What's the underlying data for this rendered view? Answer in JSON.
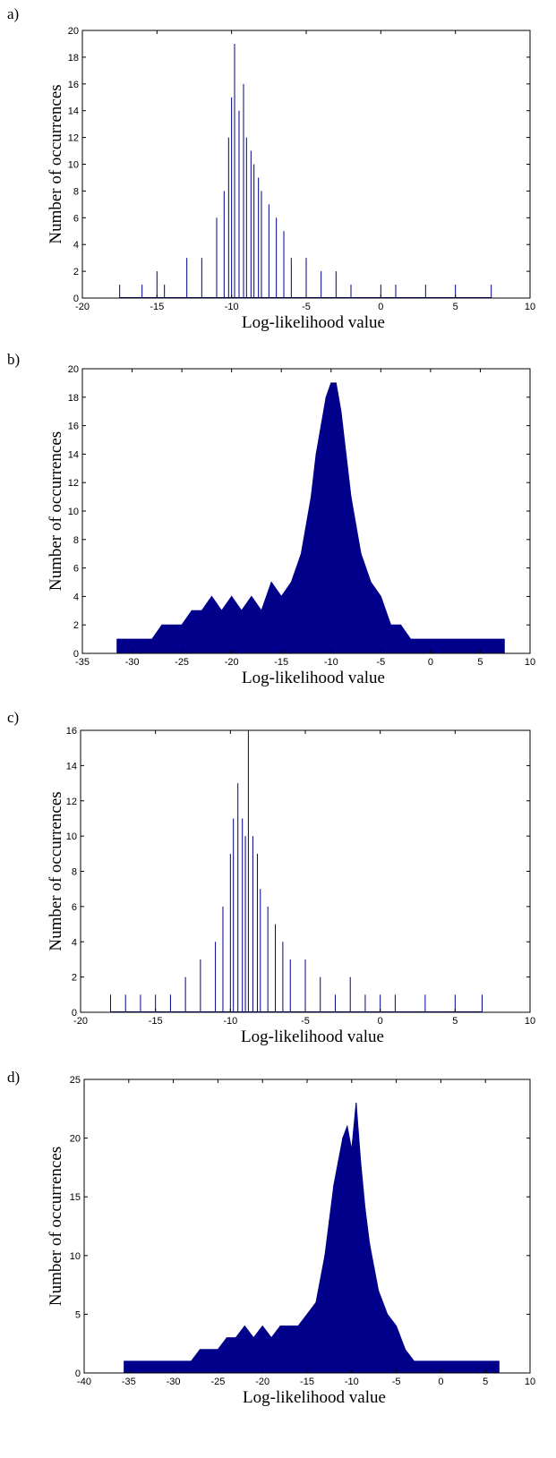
{
  "chart_data": [
    {
      "panel_label": "a)",
      "type": "bar",
      "title": "",
      "xlabel": "Log-likelihood value",
      "ylabel": "Number of occurrences",
      "xlim": [
        -20,
        10
      ],
      "ylim": [
        0,
        20
      ],
      "xticks": [
        -20,
        -15,
        -10,
        -5,
        0,
        5,
        10
      ],
      "yticks": [
        0,
        2,
        4,
        6,
        8,
        10,
        12,
        14,
        16,
        18,
        20
      ],
      "bar_color": "#00008b",
      "fill": "sparse",
      "bins": [
        [
          -17.5,
          1
        ],
        [
          -16,
          1
        ],
        [
          -15,
          2
        ],
        [
          -14.5,
          1
        ],
        [
          -13,
          3
        ],
        [
          -12,
          3
        ],
        [
          -11,
          6
        ],
        [
          -10.5,
          8
        ],
        [
          -10.2,
          12
        ],
        [
          -10,
          15
        ],
        [
          -9.8,
          19
        ],
        [
          -9.5,
          14
        ],
        [
          -9.2,
          16
        ],
        [
          -9,
          12
        ],
        [
          -8.7,
          11
        ],
        [
          -8.5,
          10
        ],
        [
          -8.2,
          9
        ],
        [
          -8,
          8
        ],
        [
          -7.5,
          7
        ],
        [
          -7,
          6
        ],
        [
          -6.5,
          5
        ],
        [
          -6,
          3
        ],
        [
          -5,
          3
        ],
        [
          -4,
          2
        ],
        [
          -3,
          2
        ],
        [
          -2,
          1
        ],
        [
          0,
          1
        ],
        [
          1,
          1
        ],
        [
          3,
          1
        ],
        [
          5,
          1
        ],
        [
          7.4,
          1
        ]
      ]
    },
    {
      "panel_label": "b)",
      "type": "bar",
      "title": "",
      "xlabel": "Log-likelihood value",
      "ylabel": "Number of occurrences",
      "xlim": [
        -35,
        10
      ],
      "ylim": [
        0,
        20
      ],
      "xticks": [
        -35,
        -30,
        -25,
        -20,
        -15,
        -10,
        -5,
        0,
        5,
        10
      ],
      "yticks": [
        0,
        2,
        4,
        6,
        8,
        10,
        12,
        14,
        16,
        18,
        20
      ],
      "bar_color": "#00008b",
      "fill": "dense",
      "bins": [
        [
          -31.5,
          1
        ],
        [
          -30,
          1
        ],
        [
          -28,
          1
        ],
        [
          -27,
          2
        ],
        [
          -26,
          2
        ],
        [
          -25,
          2
        ],
        [
          -24,
          3
        ],
        [
          -23,
          3
        ],
        [
          -22,
          4
        ],
        [
          -21,
          3
        ],
        [
          -20,
          4
        ],
        [
          -19,
          3
        ],
        [
          -18,
          4
        ],
        [
          -17,
          3
        ],
        [
          -16,
          5
        ],
        [
          -15,
          4
        ],
        [
          -14,
          5
        ],
        [
          -13,
          7
        ],
        [
          -12,
          11
        ],
        [
          -11.5,
          14
        ],
        [
          -11,
          16
        ],
        [
          -10.5,
          18
        ],
        [
          -10,
          19
        ],
        [
          -9.5,
          19
        ],
        [
          -9,
          17
        ],
        [
          -8.5,
          14
        ],
        [
          -8,
          11
        ],
        [
          -7.5,
          9
        ],
        [
          -7,
          7
        ],
        [
          -6.5,
          6
        ],
        [
          -6,
          5
        ],
        [
          -5,
          4
        ],
        [
          -4,
          2
        ],
        [
          -3,
          2
        ],
        [
          -2,
          1
        ],
        [
          -1,
          1
        ],
        [
          0,
          1
        ],
        [
          1,
          1
        ],
        [
          2,
          1
        ],
        [
          3,
          1
        ],
        [
          5,
          1
        ],
        [
          7.4,
          1
        ]
      ]
    },
    {
      "panel_label": "c)",
      "type": "bar",
      "title": "",
      "xlabel": "Log-likelihood value",
      "ylabel": "Number of occurrences",
      "xlim": [
        -20,
        10
      ],
      "ylim": [
        0,
        16
      ],
      "xticks": [
        -20,
        -15,
        -10,
        -5,
        0,
        5,
        10
      ],
      "yticks": [
        0,
        2,
        4,
        6,
        8,
        10,
        12,
        14,
        16
      ],
      "bar_color": "#00008b",
      "fill": "sparse",
      "bins": [
        [
          -18,
          1
        ],
        [
          -17,
          1
        ],
        [
          -16,
          1
        ],
        [
          -15,
          1
        ],
        [
          -14,
          1
        ],
        [
          -13,
          2
        ],
        [
          -12,
          3
        ],
        [
          -11,
          4
        ],
        [
          -10.5,
          6
        ],
        [
          -10,
          9
        ],
        [
          -9.8,
          11
        ],
        [
          -9.5,
          13
        ],
        [
          -9.2,
          11
        ],
        [
          -9,
          10
        ],
        [
          -8.8,
          16
        ],
        [
          -8.5,
          10
        ],
        [
          -8.2,
          9
        ],
        [
          -8,
          7
        ],
        [
          -7.5,
          6
        ],
        [
          -7,
          5
        ],
        [
          -6.5,
          4
        ],
        [
          -6,
          3
        ],
        [
          -5,
          3
        ],
        [
          -4,
          2
        ],
        [
          -3,
          1
        ],
        [
          -2,
          2
        ],
        [
          -1,
          1
        ],
        [
          0,
          1
        ],
        [
          1,
          1
        ],
        [
          3,
          1
        ],
        [
          5,
          1
        ],
        [
          6.8,
          1
        ]
      ]
    },
    {
      "panel_label": "d)",
      "type": "bar",
      "title": "",
      "xlabel": "Log-likelihood value",
      "ylabel": "Number of occurrences",
      "xlim": [
        -40,
        10
      ],
      "ylim": [
        0,
        25
      ],
      "xticks": [
        -40,
        -35,
        -30,
        -25,
        -20,
        -15,
        -10,
        -5,
        0,
        5,
        10
      ],
      "yticks": [
        0,
        5,
        10,
        15,
        20,
        25
      ],
      "bar_color": "#00008b",
      "fill": "dense",
      "bins": [
        [
          -35.5,
          1
        ],
        [
          -33,
          1
        ],
        [
          -31,
          1
        ],
        [
          -30,
          1
        ],
        [
          -29,
          1
        ],
        [
          -28,
          1
        ],
        [
          -27,
          2
        ],
        [
          -26,
          2
        ],
        [
          -25,
          2
        ],
        [
          -24,
          3
        ],
        [
          -23,
          3
        ],
        [
          -22,
          4
        ],
        [
          -21,
          3
        ],
        [
          -20,
          4
        ],
        [
          -19,
          3
        ],
        [
          -18,
          4
        ],
        [
          -17,
          4
        ],
        [
          -16,
          4
        ],
        [
          -15,
          5
        ],
        [
          -14,
          6
        ],
        [
          -13,
          10
        ],
        [
          -12.5,
          13
        ],
        [
          -12,
          16
        ],
        [
          -11.5,
          18
        ],
        [
          -11,
          20
        ],
        [
          -10.5,
          21
        ],
        [
          -10,
          19
        ],
        [
          -9.5,
          23
        ],
        [
          -9,
          18
        ],
        [
          -8.5,
          14
        ],
        [
          -8,
          11
        ],
        [
          -7.5,
          9
        ],
        [
          -7,
          7
        ],
        [
          -6.5,
          6
        ],
        [
          -6,
          5
        ],
        [
          -5,
          4
        ],
        [
          -4,
          2
        ],
        [
          -3,
          1
        ],
        [
          -2,
          1
        ],
        [
          -1,
          1
        ],
        [
          0,
          1
        ],
        [
          1,
          1
        ],
        [
          2,
          1
        ],
        [
          4,
          1
        ],
        [
          6.5,
          1
        ]
      ]
    }
  ]
}
